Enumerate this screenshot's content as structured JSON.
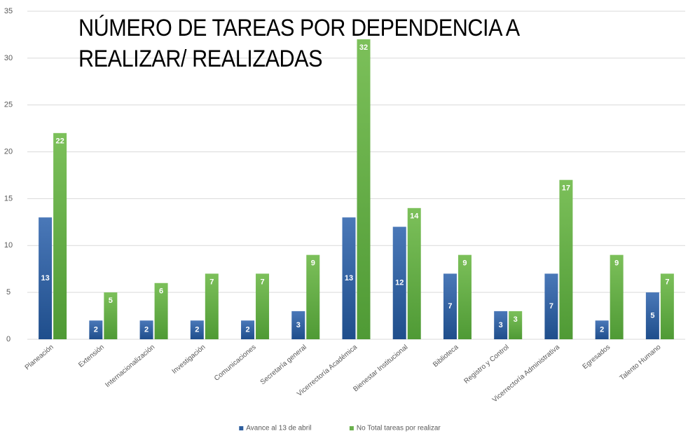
{
  "chart_data": {
    "type": "bar",
    "title": "NÚMERO DE TAREAS POR DEPENDENCIA A REALIZAR/ REALIZADAS",
    "categories": [
      "Planeación",
      "Extensión",
      "Internacionalización",
      "Investigación",
      "Comunicaciones",
      "Secretaría general",
      "Vicerrectoría Académica",
      "Bienestar Institucional",
      "Biblioteca",
      "Registro y Control",
      "Vicerrectoría Administrativa",
      "Egresados",
      "Talento Humano"
    ],
    "series": [
      {
        "name": "Avance al 13 de abril",
        "color": "#2e5e9e",
        "values": [
          13,
          2,
          2,
          2,
          2,
          3,
          13,
          12,
          7,
          3,
          7,
          2,
          5
        ]
      },
      {
        "name": "No Total tareas por realizar",
        "color": "#6ab04c",
        "values": [
          22,
          5,
          6,
          7,
          7,
          9,
          32,
          14,
          9,
          3,
          17,
          9,
          7
        ]
      }
    ],
    "ylim": [
      0,
      35
    ],
    "yticks": [
      0,
      5,
      10,
      15,
      20,
      25,
      30,
      35
    ],
    "grid": true,
    "legend": "bottom"
  }
}
